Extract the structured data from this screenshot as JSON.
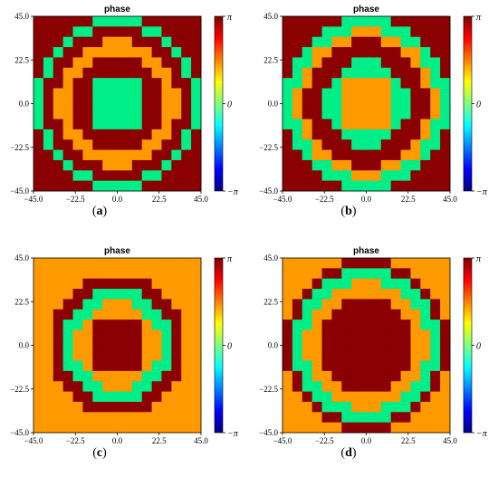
{
  "chart_data": [
    {
      "type": "heatmap",
      "panel": "a",
      "caption_pre": "(",
      "caption_letter": "a",
      "caption_post": ")",
      "title": "phase",
      "xlim": [
        -45.0,
        45.0
      ],
      "ylim": [
        -45.0,
        45.0
      ],
      "x_ticks": [
        "−45.0",
        "−22.5",
        "0.0",
        "22.5",
        "45.0"
      ],
      "y_ticks": [
        "−45.0",
        "−22.5",
        "0.0",
        "22.5",
        "45.0"
      ],
      "colorbar": {
        "min_label": "−π",
        "mid_label": "0",
        "max_label": "π",
        "range": [
          -3.1416,
          3.1416
        ]
      },
      "grid_size": 17,
      "level_values": {
        "green": 0.0,
        "orange": 1.5708,
        "red": 3.1416
      },
      "rings": {
        "green": [
          0,
          3.0
        ],
        "red": [
          3.0,
          5.0
        ],
        "orange": [
          5.0,
          6.2
        ],
        "red2": [
          6.2,
          7.4
        ],
        "green2": [
          7.4,
          8.4
        ],
        "outer": "red"
      }
    },
    {
      "type": "heatmap",
      "panel": "b",
      "caption_pre": "(",
      "caption_letter": "b",
      "caption_post": ")",
      "title": "phase",
      "xlim": [
        -45.0,
        45.0
      ],
      "ylim": [
        -45.0,
        45.0
      ],
      "x_ticks": [
        "−45.0",
        "−22.5",
        "0.0",
        "22.5",
        "45.0"
      ],
      "y_ticks": [
        "−45.0",
        "−22.5",
        "0.0",
        "22.5",
        "45.0"
      ],
      "colorbar": {
        "min_label": "−π",
        "mid_label": "0",
        "max_label": "π",
        "range": [
          -3.1416,
          3.1416
        ]
      },
      "grid_size": 17,
      "level_values": {
        "green": 0.0,
        "orange": 1.5708,
        "red": 3.1416
      },
      "rings": {
        "orange": [
          0,
          3.0
        ],
        "green": [
          3.0,
          4.2
        ],
        "red": [
          4.2,
          6.2
        ],
        "orange2": [
          6.2,
          7.2
        ],
        "green2": [
          7.2,
          8.4
        ],
        "outer": "red"
      }
    },
    {
      "type": "heatmap",
      "panel": "c",
      "caption_pre": "(",
      "caption_letter": "c",
      "caption_post": ")",
      "title": "phase",
      "xlim": [
        -45.0,
        45.0
      ],
      "ylim": [
        -45.0,
        45.0
      ],
      "x_ticks": [
        "−45.0",
        "−22.5",
        "0.0",
        "22.5",
        "45.0"
      ],
      "y_ticks": [
        "−45.0",
        "−22.5",
        "0.0",
        "22.5",
        "45.0"
      ],
      "colorbar": {
        "min_label": "−π",
        "mid_label": "0",
        "max_label": "π",
        "range": [
          -3.1416,
          3.1416
        ]
      },
      "grid_size": 17,
      "level_values": {
        "green": 0.0,
        "orange": 1.5708,
        "red": 3.1416
      },
      "rings": {
        "red": [
          0,
          3.0
        ],
        "orange": [
          3.0,
          4.2
        ],
        "green": [
          4.2,
          5.4
        ],
        "red2": [
          5.4,
          7.0
        ],
        "orange2": [
          7.0,
          7.8
        ],
        "outer": "orange"
      }
    },
    {
      "type": "heatmap",
      "panel": "d",
      "caption_pre": "(",
      "caption_letter": "d",
      "caption_post": ")",
      "title": "phase",
      "xlim": [
        -45.0,
        45.0
      ],
      "ylim": [
        -45.0,
        45.0
      ],
      "x_ticks": [
        "−45.0",
        "−22.5",
        "0.0",
        "22.5",
        "45.0"
      ],
      "y_ticks": [
        "−45.0",
        "−22.5",
        "0.0",
        "22.5",
        "45.0"
      ],
      "colorbar": {
        "min_label": "−π",
        "mid_label": "0",
        "max_label": "π",
        "range": [
          -3.1416,
          3.1416
        ]
      },
      "grid_size": 17,
      "level_values": {
        "green": 0.0,
        "orange": 1.5708,
        "red": 3.1416
      },
      "rings": {
        "red": [
          0,
          5.0
        ],
        "orange": [
          5.0,
          6.2
        ],
        "green": [
          6.2,
          7.4
        ],
        "red2": [
          7.4,
          8.4
        ],
        "outer": "orange"
      }
    }
  ],
  "colors": {
    "red": "#8b0000",
    "orange": "#ff9900",
    "green": "#00ee88",
    "colorbar_stops": [
      "#00007f",
      "#0000ff",
      "#007fff",
      "#00ffff",
      "#7fff7f",
      "#ffff00",
      "#ff7f00",
      "#ff0000",
      "#7f0000"
    ]
  }
}
